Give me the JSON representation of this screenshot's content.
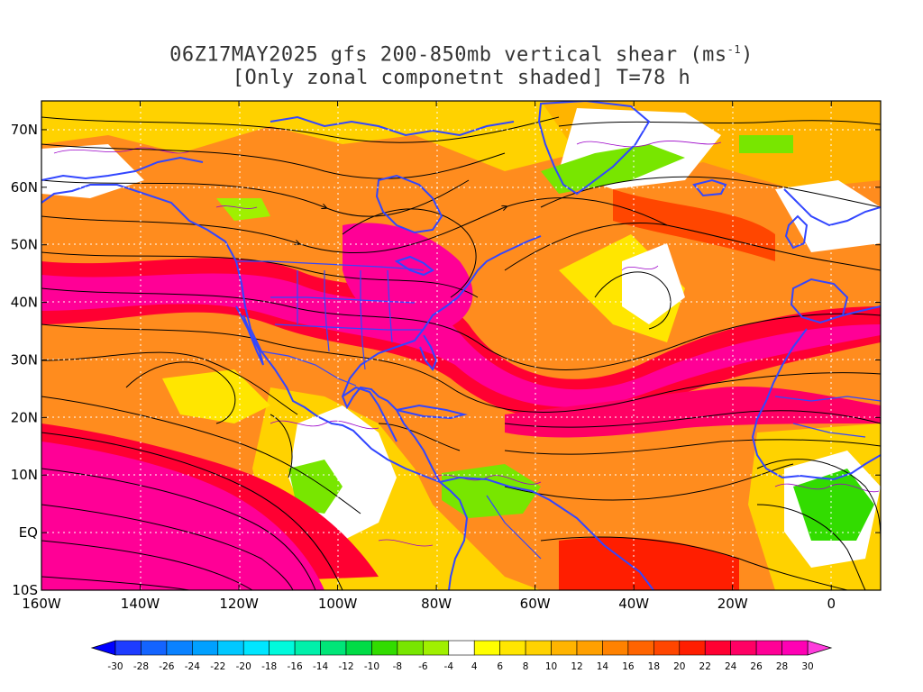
{
  "title": {
    "line1_pre": "06Z17MAY2025 gfs 200-850mb vertical shear (ms",
    "line1_sup": "-1",
    "line1_post": ")",
    "line2": "[Only zonal componetnt shaded] T=78 h"
  },
  "axes": {
    "lon_labels": [
      {
        "lon": -160,
        "label": "160W"
      },
      {
        "lon": -140,
        "label": "140W"
      },
      {
        "lon": -120,
        "label": "120W"
      },
      {
        "lon": -100,
        "label": "100W"
      },
      {
        "lon": -80,
        "label": "80W"
      },
      {
        "lon": -60,
        "label": "60W"
      },
      {
        "lon": -40,
        "label": "40W"
      },
      {
        "lon": -20,
        "label": "20W"
      },
      {
        "lon": 0,
        "label": "0"
      }
    ],
    "lat_labels": [
      {
        "lat": 70,
        "label": "70N"
      },
      {
        "lat": 60,
        "label": "60N"
      },
      {
        "lat": 50,
        "label": "50N"
      },
      {
        "lat": 40,
        "label": "40N"
      },
      {
        "lat": 30,
        "label": "30N"
      },
      {
        "lat": 20,
        "label": "20N"
      },
      {
        "lat": 10,
        "label": "10N"
      },
      {
        "lat": 0,
        "label": "EQ"
      },
      {
        "lat": -10,
        "label": "10S"
      }
    ],
    "lon_range": [
      -160,
      10
    ],
    "lat_range": [
      -10,
      75
    ]
  },
  "colorbar": {
    "labels": [
      "-30",
      "-28",
      "-26",
      "-24",
      "-22",
      "-20",
      "-18",
      "-16",
      "-14",
      "-12",
      "-10",
      "-8",
      "-6",
      "-4",
      "4",
      "6",
      "8",
      "10",
      "12",
      "14",
      "16",
      "18",
      "20",
      "22",
      "24",
      "26",
      "28",
      "30"
    ],
    "colors": [
      "#1e3cff",
      "#1464ff",
      "#0a82ff",
      "#00a0ff",
      "#00c8ff",
      "#00e6ff",
      "#00fadc",
      "#00f0aa",
      "#00e678",
      "#00dc46",
      "#32dc00",
      "#78e600",
      "#a0f000",
      "#ffffff",
      "#ffff00",
      "#ffe600",
      "#ffd200",
      "#ffb400",
      "#ffa000",
      "#ff8200",
      "#ff6400",
      "#ff4600",
      "#ff1e00",
      "#ff0032",
      "#ff0064",
      "#ff0096",
      "#ff00b4"
    ],
    "low_color": "#0000ff",
    "high_color": "#ff3cdc"
  },
  "colors": {
    "coast": "#3246ff",
    "contour": "#9b00c8",
    "stream": "#000000"
  }
}
